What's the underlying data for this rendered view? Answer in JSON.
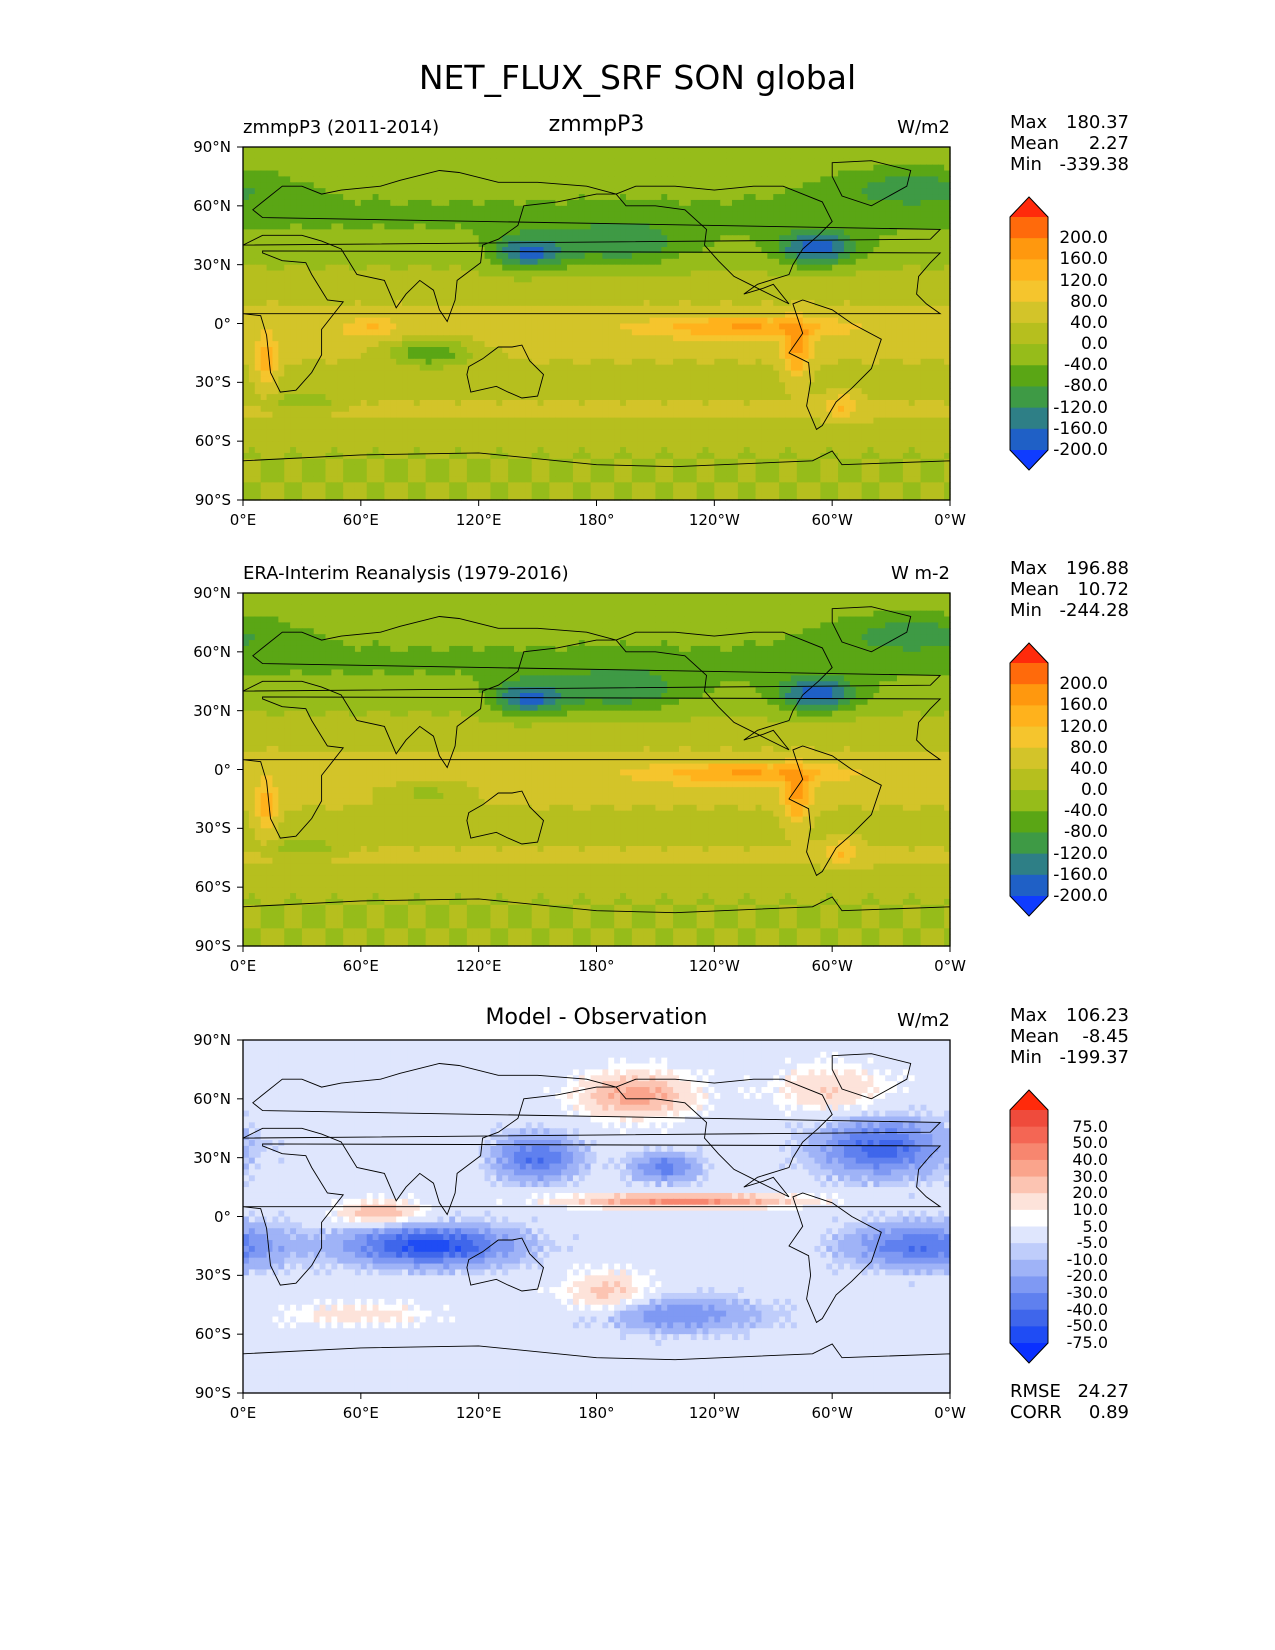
{
  "figure_title": "NET_FLUX_SRF SON global",
  "colors": {
    "land_outline": "#000000",
    "frame": "#000000"
  },
  "chart_data": [
    {
      "type": "heatmap",
      "panel": "test",
      "title": "zmmpP3",
      "left_label": "zmmpP3 (2011-2014)",
      "units": "W/m2",
      "stats": {
        "max_label": "Max",
        "max": "180.37",
        "mean_label": "Mean",
        "mean": "2.27",
        "min_label": "Min",
        "min": "-339.38"
      },
      "xlabel_ticks": [
        "0°E",
        "60°E",
        "120°E",
        "180°",
        "120°W",
        "60°W",
        "0°W"
      ],
      "ylabel_ticks": [
        "90°N",
        "60°N",
        "30°N",
        "0°",
        "30°S",
        "60°S",
        "90°S"
      ],
      "xlim": [
        0,
        360
      ],
      "ylim": [
        -90,
        90
      ],
      "colorbar": {
        "labels": [
          "200.0",
          "160.0",
          "120.0",
          "80.0",
          "40.0",
          "0.0",
          "-40.0",
          "-80.0",
          "-120.0",
          "-160.0",
          "-200.0"
        ],
        "colors": [
          "#ff2a0b",
          "#ff6a0b",
          "#ff980e",
          "#ffb21c",
          "#f5c52d",
          "#d3c429",
          "#b6bf1e",
          "#96bc1a",
          "#5aa615",
          "#3e9a45",
          "#2e7f86",
          "#1f60c6",
          "#0f3cff"
        ]
      }
    },
    {
      "type": "heatmap",
      "panel": "reference",
      "title": "",
      "left_label": "ERA-Interim Reanalysis (1979-2016)",
      "units": "W m-2",
      "stats": {
        "max_label": "Max",
        "max": "196.88",
        "mean_label": "Mean",
        "mean": "10.72",
        "min_label": "Min",
        "min": "-244.28"
      },
      "xlabel_ticks": [
        "0°E",
        "60°E",
        "120°E",
        "180°",
        "120°W",
        "60°W",
        "0°W"
      ],
      "ylabel_ticks": [
        "90°N",
        "60°N",
        "30°N",
        "0°",
        "30°S",
        "60°S",
        "90°S"
      ],
      "xlim": [
        0,
        360
      ],
      "ylim": [
        -90,
        90
      ],
      "colorbar": {
        "labels": [
          "200.0",
          "160.0",
          "120.0",
          "80.0",
          "40.0",
          "0.0",
          "-40.0",
          "-80.0",
          "-120.0",
          "-160.0",
          "-200.0"
        ],
        "colors": [
          "#ff2a0b",
          "#ff6a0b",
          "#ff980e",
          "#ffb21c",
          "#f5c52d",
          "#d3c429",
          "#b6bf1e",
          "#96bc1a",
          "#5aa615",
          "#3e9a45",
          "#2e7f86",
          "#1f60c6",
          "#0f3cff"
        ]
      }
    },
    {
      "type": "heatmap",
      "panel": "difference",
      "title": "Model - Observation",
      "left_label": "",
      "units": "W/m2",
      "stats": {
        "max_label": "Max",
        "max": "106.23",
        "mean_label": "Mean",
        "mean": "-8.45",
        "min_label": "Min",
        "min": "-199.37"
      },
      "metrics": {
        "rmse_label": "RMSE",
        "rmse": "24.27",
        "corr_label": "CORR",
        "corr": "0.89"
      },
      "xlabel_ticks": [
        "0°E",
        "60°E",
        "120°E",
        "180°",
        "120°W",
        "60°W",
        "0°W"
      ],
      "ylabel_ticks": [
        "90°N",
        "60°N",
        "30°N",
        "0°",
        "30°S",
        "60°S",
        "90°S"
      ],
      "xlim": [
        0,
        360
      ],
      "ylim": [
        -90,
        90
      ],
      "colorbar": {
        "labels": [
          "75.0",
          "50.0",
          "40.0",
          "30.0",
          "20.0",
          "10.0",
          "5.0",
          "-5.0",
          "-10.0",
          "-20.0",
          "-30.0",
          "-40.0",
          "-50.0",
          "-75.0"
        ],
        "colors": [
          "#ff2a0b",
          "#ef4b3c",
          "#f46654",
          "#f7866f",
          "#faa48c",
          "#fcc4b2",
          "#fde3da",
          "#ffffff",
          "#dfe6fd",
          "#bfcdfb",
          "#9fb3f7",
          "#7f99f3",
          "#5f80ef",
          "#3f66eb",
          "#1f4cf4",
          "#0a30ff"
        ]
      }
    }
  ]
}
